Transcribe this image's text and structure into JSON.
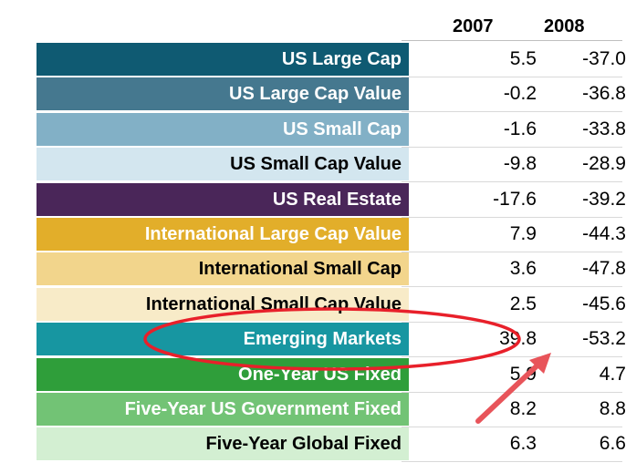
{
  "chart_data": {
    "type": "table",
    "columns": [
      "2007",
      "2008"
    ],
    "rows": [
      {
        "label": "US Large Cap",
        "bg": "#0f5a72",
        "fg": "#ffffff",
        "values": [
          "5.5",
          "-37.0"
        ]
      },
      {
        "label": "US Large Cap Value",
        "bg": "#45788f",
        "fg": "#ffffff",
        "values": [
          "-0.2",
          "-36.8"
        ]
      },
      {
        "label": "US Small Cap",
        "bg": "#82b0c6",
        "fg": "#ffffff",
        "values": [
          "-1.6",
          "-33.8"
        ]
      },
      {
        "label": "US Small Cap Value",
        "bg": "#d3e6ef",
        "fg": "#000000",
        "values": [
          "-9.8",
          "-28.9"
        ]
      },
      {
        "label": "US Real Estate",
        "bg": "#4a2659",
        "fg": "#ffffff",
        "values": [
          "-17.6",
          "-39.2"
        ]
      },
      {
        "label": "International Large Cap Value",
        "bg": "#e2ae2a",
        "fg": "#ffffff",
        "values": [
          "7.9",
          "-44.3"
        ]
      },
      {
        "label": "International Small Cap",
        "bg": "#f2d58c",
        "fg": "#000000",
        "values": [
          "3.6",
          "-47.8"
        ]
      },
      {
        "label": "International Small Cap Value",
        "bg": "#f8ebc8",
        "fg": "#000000",
        "values": [
          "2.5",
          "-45.6"
        ]
      },
      {
        "label": "Emerging Markets",
        "bg": "#1796a1",
        "fg": "#ffffff",
        "values": [
          "39.8",
          "-53.2"
        ]
      },
      {
        "label": "One-Year US Fixed",
        "bg": "#2f9e3a",
        "fg": "#ffffff",
        "values": [
          "5.9",
          "4.7"
        ]
      },
      {
        "label": "Five-Year US Government Fixed",
        "bg": "#72c375",
        "fg": "#ffffff",
        "values": [
          "8.2",
          "8.8"
        ]
      },
      {
        "label": "Five-Year Global Fixed",
        "bg": "#d3efd2",
        "fg": "#000000",
        "values": [
          "6.3",
          "6.6"
        ]
      }
    ],
    "highlight": {
      "row": "Emerging Markets",
      "ellipse_color": "#e8202a",
      "arrow_color": "#e8545a"
    }
  }
}
